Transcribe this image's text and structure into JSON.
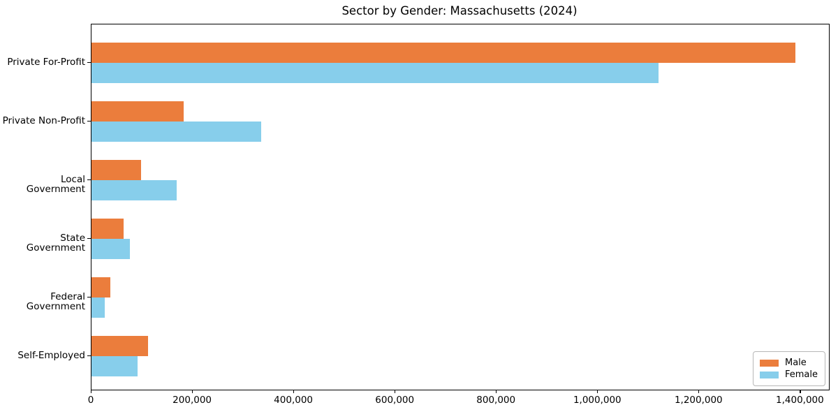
{
  "chart_data": {
    "type": "bar",
    "orientation": "horizontal",
    "title": "Sector by Gender: Massachusetts (2024)",
    "categories": [
      "Private For-Profit",
      "Private Non-Profit",
      "Local Government",
      "State Government",
      "Federal Government",
      "Self-Employed"
    ],
    "series": [
      {
        "name": "Male",
        "color": "#eb7d3c",
        "values": [
          1390000,
          182000,
          98000,
          64000,
          37000,
          112000
        ]
      },
      {
        "name": "Female",
        "color": "#87ceeb",
        "values": [
          1120000,
          335000,
          168000,
          76000,
          26000,
          91000
        ]
      }
    ],
    "xlabel": "",
    "ylabel": "",
    "xlim": [
      0,
      1456000
    ],
    "xticks": [
      {
        "value": 0,
        "label": "0"
      },
      {
        "value": 200000,
        "label": "200,000"
      },
      {
        "value": 400000,
        "label": "400,000"
      },
      {
        "value": 600000,
        "label": "600,000"
      },
      {
        "value": 800000,
        "label": "800,000"
      },
      {
        "value": 1000000,
        "label": "1,000,000"
      },
      {
        "value": 1200000,
        "label": "1,200,000"
      },
      {
        "value": 1400000,
        "label": "1,400,000"
      }
    ],
    "grid": false,
    "legend": {
      "position": "lower right",
      "entries": [
        "Male",
        "Female"
      ]
    }
  }
}
